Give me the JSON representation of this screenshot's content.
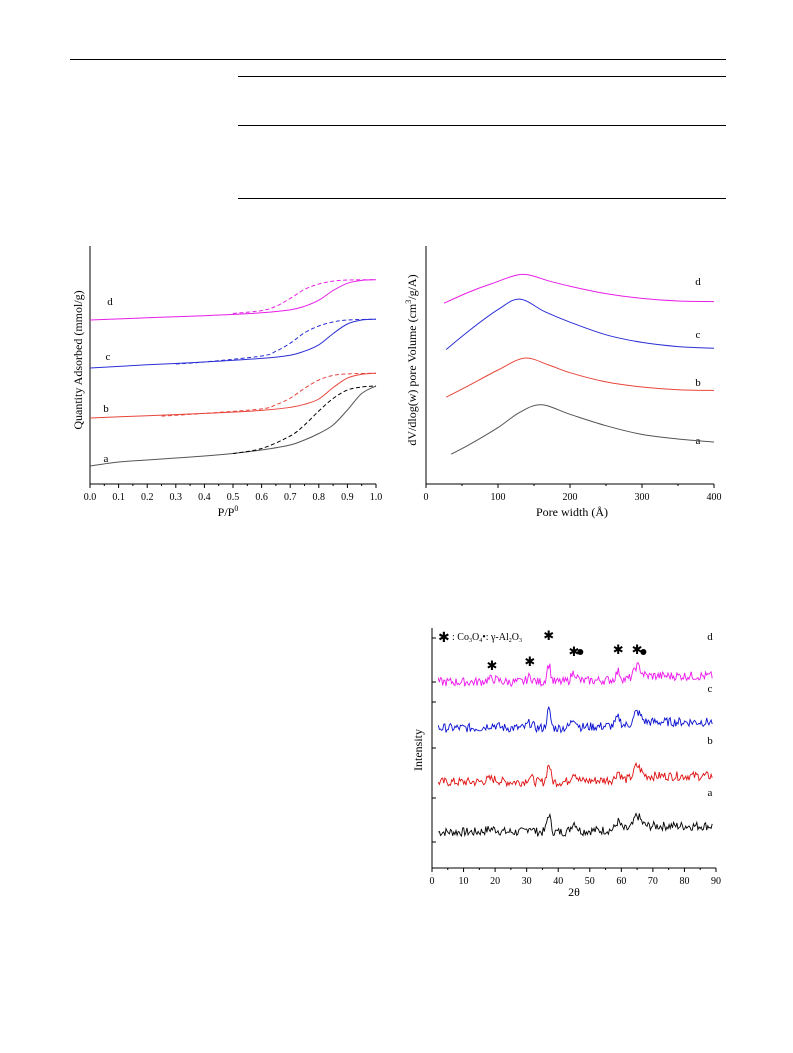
{
  "table": {
    "rows": 3
  },
  "chart_data": [
    {
      "id": "isotherm",
      "type": "line",
      "xlabel": "P/P",
      "xlabel_sup": "0",
      "ylabel": "Quantity Adsorbed (mmol/g)",
      "xlim": [
        0.0,
        1.0
      ],
      "xticks": [
        "0.0",
        "0.1",
        "0.2",
        "0.3",
        "0.4",
        "0.5",
        "0.6",
        "0.7",
        "0.8",
        "0.9",
        "1.0"
      ],
      "colors": {
        "a": "#555555",
        "b": "#e8463c",
        "c": "#2b2fd6",
        "d": "#e81ee8"
      },
      "series": [
        {
          "name": "a",
          "curve": "adsorption",
          "x": [
            0.0,
            0.1,
            0.2,
            0.3,
            0.4,
            0.5,
            0.6,
            0.7,
            0.75,
            0.8,
            0.85,
            0.9,
            0.95,
            1.0
          ],
          "y": [
            0.0,
            0.08,
            0.12,
            0.16,
            0.2,
            0.25,
            0.32,
            0.42,
            0.52,
            0.65,
            0.82,
            1.12,
            1.45,
            1.6
          ]
        },
        {
          "name": "a",
          "curve": "desorption",
          "x": [
            0.5,
            0.6,
            0.7,
            0.75,
            0.8,
            0.85,
            0.9,
            0.95,
            1.0
          ],
          "y": [
            0.25,
            0.35,
            0.6,
            0.82,
            1.1,
            1.35,
            1.52,
            1.58,
            1.6
          ]
        },
        {
          "name": "b",
          "curve": "adsorption",
          "x": [
            0.0,
            0.2,
            0.4,
            0.6,
            0.7,
            0.75,
            0.8,
            0.85,
            0.9,
            0.95,
            1.0
          ],
          "y": [
            0.0,
            0.06,
            0.12,
            0.2,
            0.28,
            0.36,
            0.5,
            0.8,
            1.05,
            1.15,
            1.18
          ]
        },
        {
          "name": "b",
          "curve": "desorption",
          "x": [
            0.25,
            0.4,
            0.6,
            0.65,
            0.7,
            0.75,
            0.8,
            0.85,
            0.9,
            1.0
          ],
          "y": [
            0.05,
            0.12,
            0.24,
            0.35,
            0.52,
            0.78,
            1.0,
            1.12,
            1.16,
            1.18
          ]
        },
        {
          "name": "c",
          "curve": "adsorption",
          "x": [
            0.0,
            0.2,
            0.4,
            0.6,
            0.7,
            0.75,
            0.8,
            0.85,
            0.9,
            0.95,
            1.0
          ],
          "y": [
            0.0,
            0.08,
            0.15,
            0.24,
            0.32,
            0.42,
            0.58,
            0.86,
            1.1,
            1.2,
            1.22
          ]
        },
        {
          "name": "c",
          "curve": "desorption",
          "x": [
            0.3,
            0.4,
            0.6,
            0.65,
            0.7,
            0.75,
            0.8,
            0.85,
            0.9,
            1.0
          ],
          "y": [
            0.1,
            0.15,
            0.3,
            0.42,
            0.62,
            0.88,
            1.05,
            1.15,
            1.2,
            1.22
          ]
        },
        {
          "name": "d",
          "curve": "adsorption",
          "x": [
            0.0,
            0.2,
            0.4,
            0.6,
            0.7,
            0.75,
            0.8,
            0.85,
            0.9,
            0.95,
            1.0
          ],
          "y": [
            0.0,
            0.06,
            0.12,
            0.2,
            0.28,
            0.38,
            0.55,
            0.82,
            1.02,
            1.1,
            1.12
          ]
        },
        {
          "name": "d",
          "curve": "desorption",
          "x": [
            0.5,
            0.6,
            0.65,
            0.7,
            0.75,
            0.8,
            0.85,
            0.9,
            1.0
          ],
          "y": [
            0.18,
            0.26,
            0.38,
            0.6,
            0.85,
            1.0,
            1.08,
            1.11,
            1.12
          ]
        }
      ]
    },
    {
      "id": "poresize",
      "type": "line",
      "xlabel": "Pore width (Å)",
      "ylabel_pre": "dV/dlog(w) pore Volume (cm",
      "ylabel_sup": "3",
      "ylabel_post": "/g/A)",
      "xlim": [
        0,
        400
      ],
      "xticks": [
        "0",
        "100",
        "200",
        "300",
        "400"
      ],
      "colors": {
        "a": "#555555",
        "b": "#e8463c",
        "c": "#2b2fd6",
        "d": "#e81ee8"
      },
      "series": [
        {
          "name": "a",
          "x": [
            35,
            60,
            100,
            130,
            160,
            200,
            250,
            300,
            350,
            400
          ],
          "y": [
            0.1,
            0.35,
            0.8,
            1.2,
            1.4,
            1.15,
            0.85,
            0.62,
            0.5,
            0.42
          ]
        },
        {
          "name": "b",
          "x": [
            28,
            60,
            100,
            137,
            170,
            200,
            250,
            300,
            350,
            400
          ],
          "y": [
            0.2,
            0.55,
            1.0,
            1.35,
            1.15,
            0.92,
            0.65,
            0.5,
            0.42,
            0.4
          ]
        },
        {
          "name": "c",
          "x": [
            28,
            60,
            100,
            130,
            165,
            200,
            250,
            300,
            350,
            400
          ],
          "y": [
            0.25,
            0.7,
            1.2,
            1.45,
            1.15,
            0.9,
            0.6,
            0.42,
            0.32,
            0.28
          ]
        },
        {
          "name": "d",
          "x": [
            25,
            60,
            90,
            133,
            170,
            200,
            250,
            300,
            350,
            400
          ],
          "y": [
            0.15,
            0.5,
            0.75,
            1.05,
            0.85,
            0.68,
            0.45,
            0.3,
            0.22,
            0.2
          ]
        }
      ]
    },
    {
      "id": "xrd",
      "type": "line",
      "xlabel": "2θ",
      "ylabel": "Intensity",
      "xlim": [
        0,
        90
      ],
      "xticks": [
        "0",
        "10",
        "20",
        "30",
        "40",
        "50",
        "60",
        "70",
        "80",
        "90"
      ],
      "legend": {
        "co": "Co",
        "co_sub1": "3",
        "co_mid": "O",
        "co_sub2": "4",
        "sep": "•:  γ-Al",
        "al_sub1": "2",
        "al_mid": "O",
        "al_sub2": "3",
        "pre": ": "
      },
      "co3o4_peaks": [
        19,
        31,
        37,
        45,
        59,
        65
      ],
      "al2o3_peaks": [
        47,
        67
      ],
      "colors": {
        "a": "#000000",
        "b": "#e01010",
        "c": "#0a10d0",
        "d": "#ee18ee"
      },
      "series_names": [
        "a",
        "b",
        "c",
        "d"
      ]
    }
  ],
  "labels": {
    "a": "a",
    "b": "b",
    "c": "c",
    "d": "d"
  }
}
